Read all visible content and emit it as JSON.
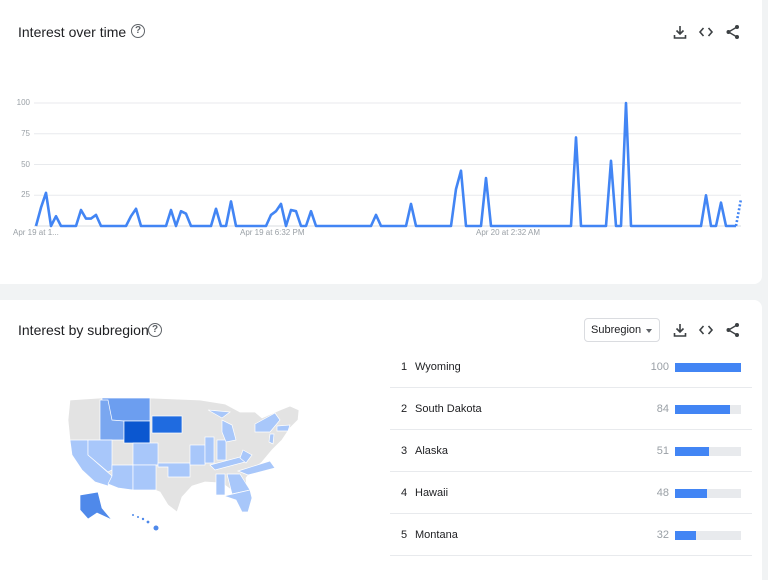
{
  "interest_over_time": {
    "title": "Interest over time",
    "help_icon": "help-circle-icon",
    "actions": [
      "download-icon",
      "embed-code-icon",
      "share-icon"
    ],
    "chart_data": {
      "type": "line",
      "y_ticks": [
        "100",
        "75",
        "50",
        "25"
      ],
      "ylim": [
        0,
        100
      ],
      "x_tick_labels": [
        "Apr 19 at 1...",
        "Apr 19 at 6:32 PM",
        "Apr 20 at 2:32 AM"
      ],
      "grid": true,
      "line_color": "#4285f4",
      "last_segment_partial": true,
      "values": [
        0,
        15,
        27,
        0,
        8,
        0,
        0,
        0,
        0,
        13,
        6,
        6,
        9,
        0,
        0,
        0,
        0,
        0,
        0,
        8,
        14,
        0,
        0,
        0,
        0,
        0,
        0,
        13,
        0,
        12,
        10,
        0,
        0,
        0,
        0,
        0,
        14,
        0,
        0,
        20,
        0,
        0,
        0,
        0,
        0,
        0,
        0,
        9,
        12,
        18,
        0,
        13,
        12,
        0,
        0,
        12,
        0,
        0,
        0,
        0,
        0,
        0,
        0,
        0,
        0,
        0,
        0,
        0,
        9,
        0,
        0,
        0,
        0,
        0,
        0,
        18,
        0,
        0,
        0,
        0,
        0,
        0,
        0,
        0,
        30,
        45,
        0,
        0,
        0,
        0,
        39,
        0,
        0,
        0,
        0,
        0,
        0,
        0,
        0,
        0,
        0,
        0,
        0,
        0,
        0,
        0,
        0,
        0,
        72,
        0,
        0,
        0,
        0,
        0,
        0,
        53,
        0,
        0,
        100,
        0,
        0,
        0,
        0,
        0,
        0,
        0,
        0,
        0,
        0,
        0,
        0,
        0,
        0,
        0,
        25,
        0,
        0,
        19,
        0,
        0,
        0,
        22
      ]
    }
  },
  "interest_by_subregion": {
    "title": "Interest by subregion",
    "help_icon": "help-circle-icon",
    "dropdown": {
      "selected": "Subregion"
    },
    "actions": [
      "download-icon",
      "embed-code-icon",
      "share-icon"
    ],
    "map_colors": {
      "base": "#e3e3e3",
      "level_100": "#0b57d0",
      "level_84": "#1f6be0",
      "level_51": "#4f89ea",
      "level_32": "#6c9ef0",
      "low": "#a8c7fa"
    },
    "rows": [
      {
        "rank": "1",
        "name": "Wyoming",
        "value": 100
      },
      {
        "rank": "2",
        "name": "South Dakota",
        "value": 84
      },
      {
        "rank": "3",
        "name": "Alaska",
        "value": 51
      },
      {
        "rank": "4",
        "name": "Hawaii",
        "value": 48
      },
      {
        "rank": "5",
        "name": "Montana",
        "value": 32
      }
    ]
  }
}
